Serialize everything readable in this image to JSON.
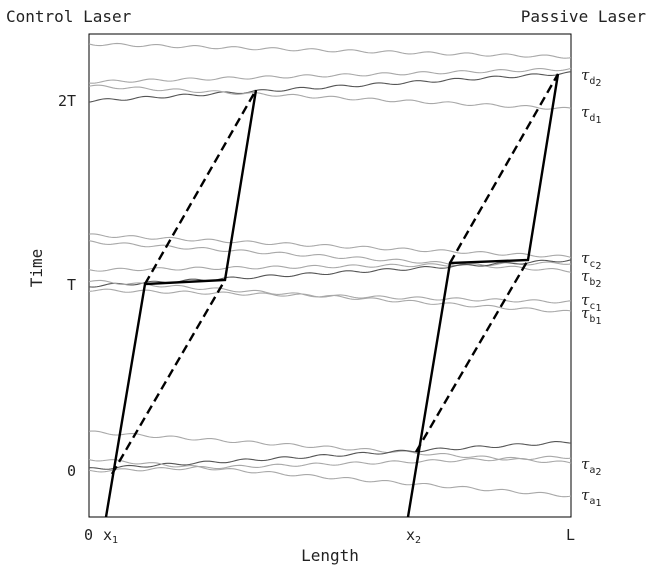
{
  "header": {
    "left_title": "Control Laser",
    "right_title": "Passive Laser"
  },
  "axes": {
    "x_label": "Length",
    "y_label": "Time",
    "x_ticks": [
      "0",
      "x1",
      "x2",
      "L"
    ],
    "y_ticks": [
      "0",
      "T",
      "2T"
    ]
  },
  "right_labels": [
    {
      "base": "τ",
      "sub": "d",
      "idx": "2"
    },
    {
      "base": "τ",
      "sub": "d",
      "idx": "1"
    },
    {
      "base": "τ",
      "sub": "c",
      "idx": "2"
    },
    {
      "base": "τ",
      "sub": "b",
      "idx": "2"
    },
    {
      "base": "τ",
      "sub": "c",
      "idx": "1"
    },
    {
      "base": "τ",
      "sub": "b",
      "idx": "1"
    },
    {
      "base": "τ",
      "sub": "a",
      "idx": "2"
    },
    {
      "base": "τ",
      "sub": "a",
      "idx": "1"
    }
  ],
  "colors": {
    "frame": "#000000",
    "path": "#000000",
    "wave_dark": "#555555",
    "wave_light": "#a8a8a8"
  }
}
